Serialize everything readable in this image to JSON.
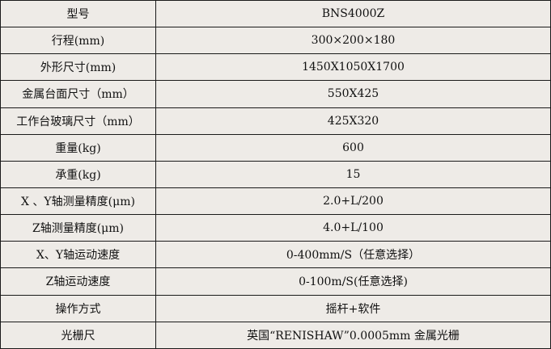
{
  "rows": [
    {
      "label": "型号",
      "value": "BNS4000Z"
    },
    {
      "label": "行程(mm)",
      "value": "300×200×180"
    },
    {
      "label": "外形尺寸(mm)",
      "value": "1450X1050X1700"
    },
    {
      "label": "金属台面尺寸（mm）",
      "value": "550X425"
    },
    {
      "label": "工作台玻璃尺寸（mm）",
      "value": "425X320"
    },
    {
      "label": "重量(kg)",
      "value": "600"
    },
    {
      "label": "承重(kg)",
      "value": "15"
    },
    {
      "label": "X 、Y轴测量精度(μm)",
      "value": "2.0+L/200"
    },
    {
      "label": "Z轴测量精度(μm)",
      "value": "4.0+L/100"
    },
    {
      "label": "X、Y轴运动速度",
      "value": "0-400mm/S（任意选择）"
    },
    {
      "label": "Z轴运动速度",
      "value": "0-100m/S(任意选择)"
    },
    {
      "label": "操作方式",
      "value": "摇杆+软件"
    },
    {
      "label": "光栅尺",
      "value": "英国“RENISHAW”0.0005mm 金属光栅"
    }
  ]
}
